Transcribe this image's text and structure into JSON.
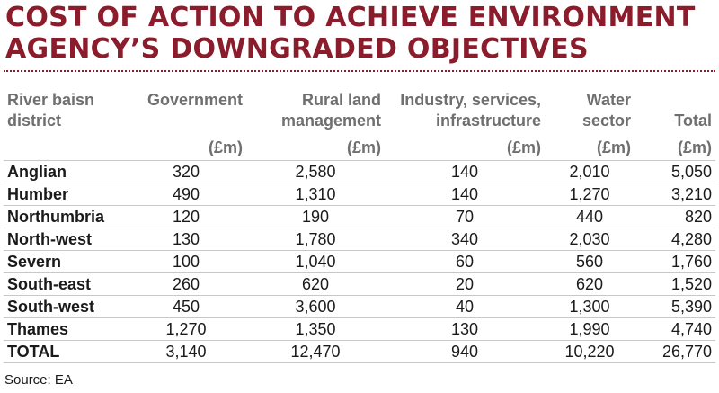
{
  "title": "COST OF ACTION TO ACHIEVE ENVIRONMENT AGENCY’S DOWNGRADED OBJECTIVES",
  "source": "Source: EA",
  "chart_data": {
    "type": "table",
    "title": "COST OF ACTION TO ACHIEVE ENVIRONMENT AGENCY’S DOWNGRADED OBJECTIVES",
    "columns": [
      {
        "label_lines": [
          "River baisn",
          "district"
        ],
        "unit": ""
      },
      {
        "label_lines": [
          "Government"
        ],
        "unit": "(£m)"
      },
      {
        "label_lines": [
          "Rural land",
          "management"
        ],
        "unit": "(£m)"
      },
      {
        "label_lines": [
          "Industry, services,",
          "infrastructure"
        ],
        "unit": "(£m)"
      },
      {
        "label_lines": [
          "Water",
          "sector"
        ],
        "unit": "(£m)"
      },
      {
        "label_lines": [
          "",
          "Total"
        ],
        "unit": "(£m)"
      }
    ],
    "rows": [
      [
        "Anglian",
        "320",
        "2,580",
        "140",
        "2,010",
        "5,050"
      ],
      [
        "Humber",
        "490",
        "1,310",
        "140",
        "1,270",
        "3,210"
      ],
      [
        "Northumbria",
        "120",
        "190",
        "70",
        "440",
        "820"
      ],
      [
        "North-west",
        "130",
        "1,780",
        "340",
        "2,030",
        "4,280"
      ],
      [
        "Severn",
        "100",
        "1,040",
        "60",
        "560",
        "1,760"
      ],
      [
        "South-east",
        "260",
        "620",
        "20",
        "620",
        "1,520"
      ],
      [
        "South-west",
        "450",
        "3,600",
        "40",
        "1,300",
        "5,390"
      ],
      [
        "Thames",
        "1,270",
        "1,350",
        "130",
        "1,990",
        "4,740"
      ],
      [
        "TOTAL",
        "3,140",
        "12,470",
        "940",
        "10,220",
        "26,770"
      ]
    ]
  },
  "colors": {
    "title": "#8b1c2c",
    "header": "#6f6f6f",
    "rule": "#c8c8c8"
  }
}
